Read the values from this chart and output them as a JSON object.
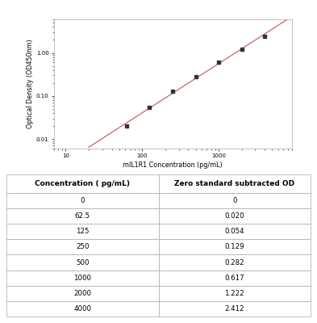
{
  "x_data": [
    62.5,
    125,
    250,
    500,
    1000,
    2000,
    4000
  ],
  "y_data": [
    0.02,
    0.054,
    0.129,
    0.282,
    0.617,
    1.222,
    2.412
  ],
  "line_color": "#c86464",
  "marker_color": "#333333",
  "xlabel": "mIL1R1 Concentration (pg/mL)",
  "ylabel": "Optical Density (OD450nm)",
  "xlim": [
    7,
    9000
  ],
  "ylim": [
    0.006,
    6.0
  ],
  "xticks": [
    10,
    100,
    1000
  ],
  "yticks": [
    0.01,
    0.1,
    1
  ],
  "table_concentrations": [
    "0",
    "62.5",
    "125",
    "250",
    "500",
    "1000",
    "2000",
    "4000"
  ],
  "table_od": [
    "0",
    "0.020",
    "0.054",
    "0.129",
    "0.282",
    "0.617",
    "1.222",
    "2.412"
  ],
  "table_header_col1": "Concentration ( pg/mL)",
  "table_header_col2": "Zero standard subtracted OD",
  "background_color": "#ffffff"
}
